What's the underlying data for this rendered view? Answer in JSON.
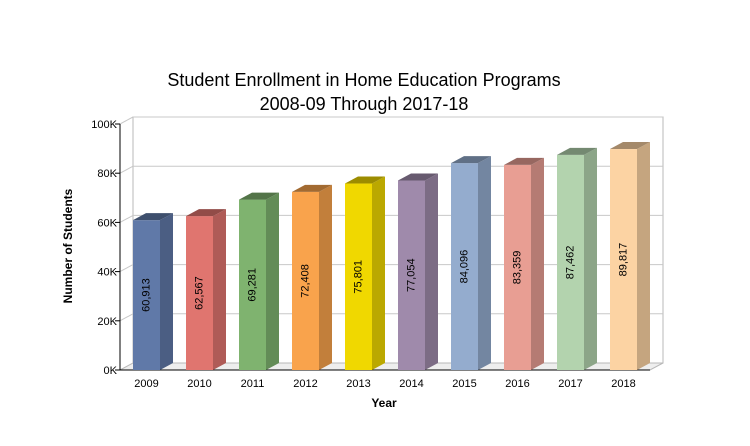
{
  "chart_data": {
    "type": "bar",
    "title": "Student Enrollment in Home Education Programs",
    "subtitle": "2008-09 Through 2017-18",
    "xlabel": "Year",
    "ylabel": "Number of Students",
    "categories": [
      "2009",
      "2010",
      "2011",
      "2012",
      "2013",
      "2014",
      "2015",
      "2016",
      "2017",
      "2018"
    ],
    "values": [
      60913,
      62567,
      69281,
      72408,
      75801,
      77054,
      84096,
      83359,
      87462,
      89817
    ],
    "data_labels": [
      "60,913",
      "62,567",
      "69,281",
      "72,408",
      "75,801",
      "77,054",
      "84,096",
      "83,359",
      "87,462",
      "89,817"
    ],
    "ylim": [
      0,
      100000
    ],
    "yticks": [
      0,
      20000,
      40000,
      60000,
      80000,
      100000
    ],
    "ytick_labels": [
      "0K",
      "20K",
      "40K",
      "60K",
      "80K",
      "100K"
    ],
    "grid": true,
    "legend": "none",
    "colors": [
      "#6079a8",
      "#e0756f",
      "#7fb36f",
      "#f9a34c",
      "#f0d800",
      "#9f8aab",
      "#94acce",
      "#e89e93",
      "#b3d3ae",
      "#fcd3a3"
    ]
  }
}
